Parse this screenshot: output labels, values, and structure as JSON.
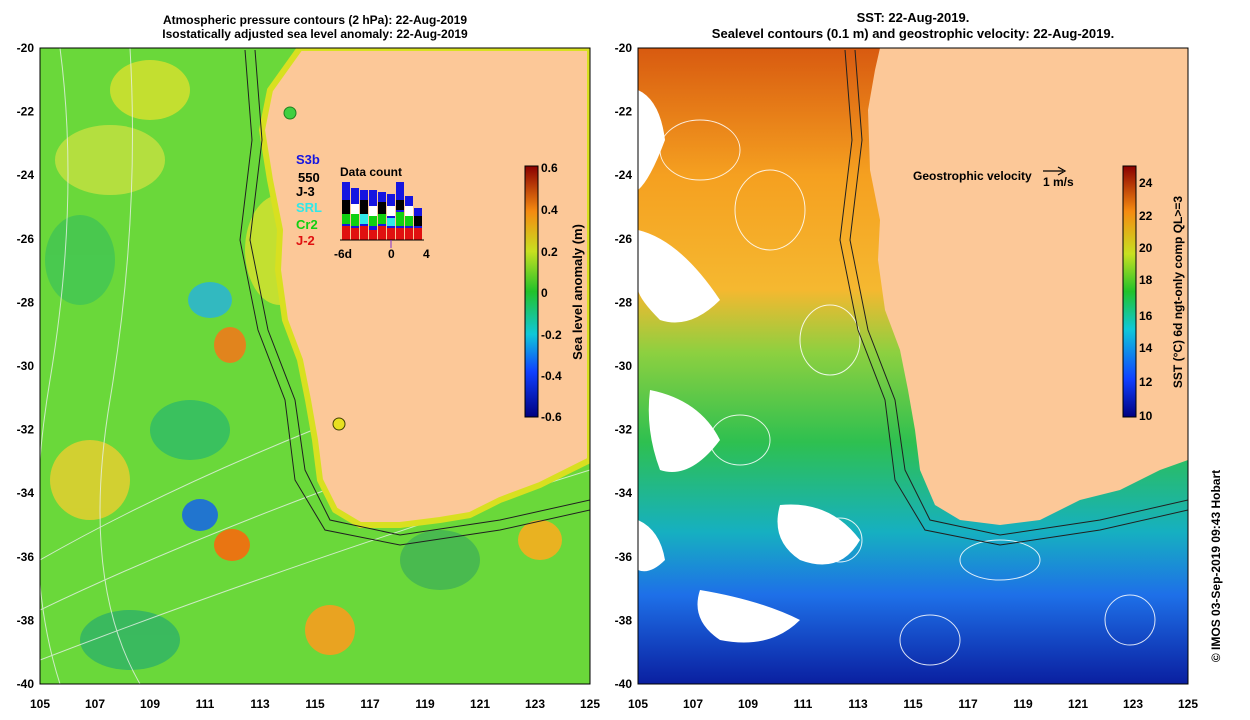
{
  "left_panel": {
    "title_line1": "Atmospheric pressure contours (2 hPa): 22-Aug-2019",
    "title_line2": "Isostatically adjusted sea level anomaly: 22-Aug-2019",
    "colorbar": {
      "label": "Sea level anomaly (m)",
      "ticks": [
        "0.6",
        "0.4",
        "0.2",
        "0",
        "-0.2",
        "-0.4",
        "-0.6"
      ]
    },
    "missions": [
      {
        "name": "S3b",
        "color": "#1515e0"
      },
      {
        "name": "550",
        "color": "#000000"
      },
      {
        "name": "J-3",
        "color": "#000000"
      },
      {
        "name": "SRL",
        "color": "#30e8e8"
      },
      {
        "name": "Cr2",
        "color": "#10d010"
      },
      {
        "name": "J-2",
        "color": "#e01010"
      }
    ],
    "data_count": {
      "title": "Data count",
      "axis_labels": [
        "-6d",
        "0",
        "4"
      ]
    }
  },
  "right_panel": {
    "title_line1": "SST: 22-Aug-2019.",
    "title_line2": "Sealevel contours (0.1 m) and geostrophic velocity: 22-Aug-2019.",
    "velocity_label": "Geostrophic velocity",
    "velocity_scale": "1 m/s",
    "colorbar": {
      "label": "SST (°C) 6d ngt-only comp QL>=3",
      "ticks": [
        "24",
        "22",
        "20",
        "18",
        "16",
        "14",
        "12",
        "10"
      ]
    }
  },
  "axes": {
    "lat_ticks": [
      "-20",
      "-22",
      "-24",
      "-26",
      "-28",
      "-30",
      "-32",
      "-34",
      "-36",
      "-38",
      "-40"
    ],
    "lon_ticks": [
      "105",
      "107",
      "109",
      "111",
      "113",
      "115",
      "117",
      "119",
      "121",
      "123",
      "125"
    ]
  },
  "credit": "© IMOS 03-Sep-2019 09:43 Hobart",
  "colors": {
    "land": "#fcc898",
    "sla_field": "#6ad83a",
    "sst_warm": "#f5a020",
    "sst_cool": "#1e8ee0"
  }
}
